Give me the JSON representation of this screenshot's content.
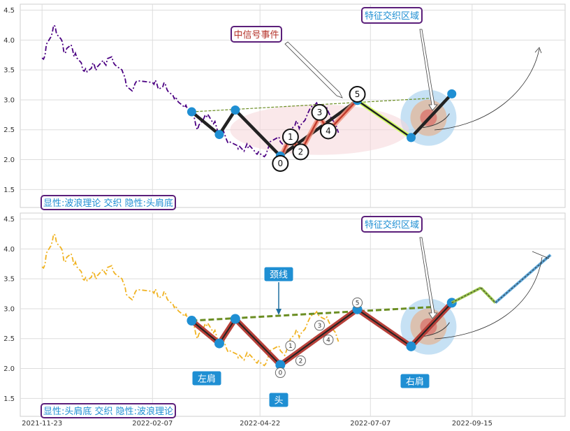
{
  "chart_data": [
    {
      "panel": "top",
      "type": "line",
      "ylim": [
        1.2,
        4.6
      ],
      "yticks": [
        "1.5",
        "2.0",
        "2.5",
        "3.0",
        "3.5",
        "4.0",
        "4.5"
      ],
      "grid": true,
      "main_line_color": "#4b0082",
      "legend_text": "显性:波浪理论 交织 隐性:头肩底",
      "event_label": "中信号事件",
      "zone_label": "特征交织区域",
      "price_series": [
        [
          "2021-11-23",
          3.7
        ],
        [
          "2021-11-24",
          3.68
        ],
        [
          "2021-11-25",
          3.74
        ],
        [
          "2021-11-26",
          3.93
        ],
        [
          "2021-11-29",
          4.05
        ],
        [
          "2021-11-30",
          4.12
        ],
        [
          "2021-12-01",
          4.25
        ],
        [
          "2021-12-02",
          4.23
        ],
        [
          "2021-12-03",
          4.1
        ],
        [
          "2021-12-06",
          4.02
        ],
        [
          "2021-12-07",
          3.97
        ],
        [
          "2021-12-08",
          3.8
        ],
        [
          "2021-12-09",
          3.78
        ],
        [
          "2021-12-10",
          3.86
        ],
        [
          "2021-12-13",
          3.92
        ],
        [
          "2021-12-14",
          3.84
        ],
        [
          "2021-12-15",
          3.72
        ],
        [
          "2021-12-16",
          3.78
        ],
        [
          "2021-12-17",
          3.7
        ],
        [
          "2021-12-20",
          3.62
        ],
        [
          "2021-12-21",
          3.5
        ],
        [
          "2021-12-22",
          3.48
        ],
        [
          "2021-12-23",
          3.52
        ],
        [
          "2021-12-24",
          3.47
        ],
        [
          "2021-12-27",
          3.53
        ],
        [
          "2021-12-28",
          3.62
        ],
        [
          "2021-12-29",
          3.58
        ],
        [
          "2021-12-30",
          3.49
        ],
        [
          "2021-12-31",
          3.55
        ],
        [
          "2022-01-04",
          3.66
        ],
        [
          "2022-01-05",
          3.61
        ],
        [
          "2022-01-06",
          3.58
        ],
        [
          "2022-01-07",
          3.69
        ],
        [
          "2022-01-10",
          3.72
        ],
        [
          "2022-01-11",
          3.63
        ],
        [
          "2022-01-12",
          3.59
        ],
        [
          "2022-01-13",
          3.57
        ],
        [
          "2022-01-14",
          3.55
        ],
        [
          "2022-01-17",
          3.5
        ],
        [
          "2022-01-18",
          3.43
        ],
        [
          "2022-01-19",
          3.38
        ],
        [
          "2022-01-20",
          3.24
        ],
        [
          "2022-01-21",
          3.21
        ],
        [
          "2022-01-24",
          3.15
        ],
        [
          "2022-01-25",
          3.2
        ],
        [
          "2022-01-26",
          3.27
        ],
        [
          "2022-01-27",
          3.31
        ],
        [
          "2022-01-28",
          3.32
        ],
        [
          "2022-02-07",
          3.29
        ],
        [
          "2022-02-08",
          3.26
        ],
        [
          "2022-02-09",
          3.33
        ],
        [
          "2022-02-10",
          3.27
        ],
        [
          "2022-02-11",
          3.18
        ],
        [
          "2022-02-14",
          3.21
        ],
        [
          "2022-02-15",
          3.29
        ],
        [
          "2022-02-16",
          3.25
        ],
        [
          "2022-02-17",
          3.17
        ],
        [
          "2022-02-18",
          3.13
        ],
        [
          "2022-02-21",
          3.08
        ],
        [
          "2022-02-22",
          3.02
        ],
        [
          "2022-02-23",
          3.05
        ],
        [
          "2022-02-24",
          2.99
        ],
        [
          "2022-02-25",
          2.96
        ],
        [
          "2022-02-28",
          2.9
        ],
        [
          "2022-03-01",
          2.87
        ],
        [
          "2022-03-02",
          2.91
        ],
        [
          "2022-03-03",
          2.85
        ],
        [
          "2022-03-04",
          2.82
        ],
        [
          "2022-03-07",
          2.76
        ],
        [
          "2022-03-08",
          2.68
        ],
        [
          "2022-03-09",
          2.55
        ],
        [
          "2022-03-10",
          2.5
        ],
        [
          "2022-03-11",
          2.58
        ],
        [
          "2022-03-14",
          2.67
        ],
        [
          "2022-03-15",
          2.73
        ],
        [
          "2022-03-16",
          2.7
        ],
        [
          "2022-03-17",
          2.76
        ],
        [
          "2022-03-18",
          2.72
        ],
        [
          "2022-03-21",
          2.6
        ],
        [
          "2022-03-22",
          2.64
        ],
        [
          "2022-03-23",
          2.55
        ],
        [
          "2022-03-24",
          2.46
        ],
        [
          "2022-03-25",
          2.4
        ],
        [
          "2022-03-28",
          2.47
        ],
        [
          "2022-03-29",
          2.4
        ],
        [
          "2022-03-30",
          2.33
        ],
        [
          "2022-03-31",
          2.28
        ],
        [
          "2022-04-01",
          2.3
        ],
        [
          "2022-04-06",
          2.24
        ],
        [
          "2022-04-07",
          2.18
        ],
        [
          "2022-04-08",
          2.22
        ],
        [
          "2022-04-11",
          2.14
        ],
        [
          "2022-04-12",
          2.2
        ],
        [
          "2022-04-13",
          2.26
        ],
        [
          "2022-04-14",
          2.19
        ],
        [
          "2022-04-15",
          2.23
        ],
        [
          "2022-04-18",
          2.15
        ],
        [
          "2022-04-19",
          2.11
        ],
        [
          "2022-04-20",
          2.09
        ],
        [
          "2022-04-21",
          2.13
        ],
        [
          "2022-04-22",
          2.1
        ],
        [
          "2022-04-25",
          2.05
        ],
        [
          "2022-04-26",
          2.08
        ],
        [
          "2022-04-27",
          2.15
        ],
        [
          "2022-04-28",
          2.22
        ],
        [
          "2022-04-29",
          2.3
        ],
        [
          "2022-05-05",
          2.38
        ],
        [
          "2022-05-06",
          2.3
        ],
        [
          "2022-05-09",
          2.22
        ],
        [
          "2022-05-10",
          2.28
        ],
        [
          "2022-05-11",
          2.36
        ],
        [
          "2022-05-12",
          2.42
        ],
        [
          "2022-05-13",
          2.5
        ],
        [
          "2022-05-16",
          2.57
        ],
        [
          "2022-05-17",
          2.65
        ],
        [
          "2022-05-18",
          2.6
        ],
        [
          "2022-05-19",
          2.52
        ],
        [
          "2022-05-20",
          2.58
        ],
        [
          "2022-05-23",
          2.66
        ],
        [
          "2022-05-24",
          2.72
        ],
        [
          "2022-05-25",
          2.78
        ],
        [
          "2022-05-26",
          2.83
        ],
        [
          "2022-05-27",
          2.88
        ],
        [
          "2022-05-30",
          2.92
        ],
        [
          "2022-05-31",
          2.95
        ],
        [
          "2022-06-01",
          2.9
        ],
        [
          "2022-06-02",
          2.87
        ],
        [
          "2022-06-06",
          2.82
        ],
        [
          "2022-06-07",
          2.86
        ],
        [
          "2022-06-08",
          2.8
        ],
        [
          "2022-06-09",
          2.75
        ],
        [
          "2022-06-10",
          2.69
        ],
        [
          "2022-06-13",
          2.6
        ],
        [
          "2022-06-14",
          2.52
        ],
        [
          "2022-06-15",
          2.45
        ]
      ],
      "wave_points": [
        {
          "label": "0",
          "date": "2022-05-06",
          "value": 2.03
        },
        {
          "label": "1",
          "date": "2022-05-13",
          "value": 2.38
        },
        {
          "label": "2",
          "date": "2022-05-20",
          "value": 2.13
        },
        {
          "label": "3",
          "date": "2022-06-02",
          "value": 2.72
        },
        {
          "label": "4",
          "date": "2022-06-08",
          "value": 2.48
        },
        {
          "label": "5",
          "date": "2022-06-28",
          "value": 3.0
        }
      ],
      "pattern_points": [
        {
          "date": "2022-03-06",
          "value": 2.8
        },
        {
          "date": "2022-03-25",
          "value": 2.42
        },
        {
          "date": "2022-04-05",
          "value": 2.83
        },
        {
          "date": "2022-05-06",
          "value": 2.06
        },
        {
          "date": "2022-06-28",
          "value": 2.99
        },
        {
          "date": "2022-08-04",
          "value": 2.37
        },
        {
          "date": "2022-09-01",
          "value": 3.1
        }
      ]
    },
    {
      "panel": "bottom",
      "type": "line",
      "ylim": [
        1.2,
        4.6
      ],
      "yticks": [
        "1.5",
        "2.0",
        "2.5",
        "3.0",
        "3.5",
        "4.0",
        "4.5"
      ],
      "grid": true,
      "main_line_color": "#f0b323",
      "legend_text": "显性:头肩底 交织 隐性:波浪理论",
      "neckline_label": "颈线",
      "zone_label": "特征交织区域",
      "shoulder_labels": {
        "left": "左肩",
        "head": "头",
        "right": "右肩"
      },
      "wave_labels": [
        "0",
        "1",
        "2",
        "3",
        "4",
        "5"
      ]
    }
  ],
  "x_axis": {
    "ticks": [
      "2021-11-23",
      "2022-02-07",
      "2022-04-22",
      "2022-07-07",
      "2022-09-15"
    ]
  }
}
